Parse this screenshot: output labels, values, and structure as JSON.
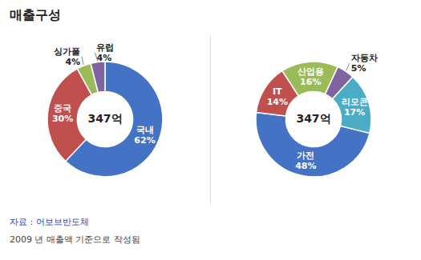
{
  "chart_data": [
    {
      "type": "pie",
      "title": "매출구성",
      "categories": [
        "국내",
        "중국",
        "싱가폴",
        "유럽"
      ],
      "values": [
        62,
        30,
        4,
        4
      ],
      "value_labels": [
        "62%",
        "30%",
        "4%",
        "4%"
      ],
      "colors": [
        "#4472c4",
        "#c0504d",
        "#9bbb59",
        "#8064a2"
      ],
      "data_labels": true,
      "annotations": [
        "347억",
        "자료 : 어보브반도체",
        "2009 년 매출액 기준으로 작성됨"
      ]
    },
    {
      "type": "pie",
      "categories": [
        "가전",
        "IT",
        "산업용",
        "자동차",
        "리모콘"
      ],
      "values": [
        48,
        14,
        16,
        5,
        17
      ],
      "value_labels": [
        "48%",
        "14%",
        "16%",
        "5%",
        "17%"
      ],
      "colors": [
        "#4472c4",
        "#c0504d",
        "#9bbb59",
        "#8064a2",
        "#4bacc6"
      ],
      "data_labels": true,
      "annotations": [
        "347억"
      ]
    }
  ]
}
